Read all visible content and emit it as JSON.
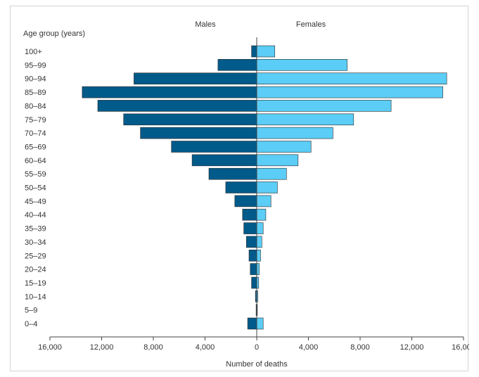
{
  "chart_data": {
    "type": "bar",
    "orientation": "horizontal",
    "subtype": "population-pyramid",
    "title": "",
    "ylabel": "Age group (years)",
    "xlabel": "Number of deaths",
    "xlim": [
      -16000,
      16000
    ],
    "x_ticks": [
      -16000,
      -12000,
      -8000,
      -4000,
      0,
      4000,
      8000,
      12000,
      16000
    ],
    "x_tick_labels": [
      "16,000",
      "12,000",
      "8,000",
      "4,000",
      "0",
      "4,000",
      "8,000",
      "12,000",
      "16,000"
    ],
    "grid": false,
    "legend": "top-center",
    "categories": [
      "100+",
      "95–99",
      "90–94",
      "85–89",
      "80–84",
      "75–79",
      "70–74",
      "65–69",
      "60–64",
      "55–59",
      "50–54",
      "45–49",
      "40–44",
      "35–39",
      "30–34",
      "25–29",
      "20–24",
      "15–19",
      "10–14",
      "5–9",
      "0–4"
    ],
    "series": [
      {
        "name": "Males",
        "side": "left",
        "color": "#005a8a",
        "values": [
          400,
          3000,
          9500,
          13500,
          12300,
          10300,
          9000,
          6600,
          5000,
          3700,
          2400,
          1700,
          1100,
          1000,
          800,
          600,
          500,
          400,
          100,
          50,
          700
        ]
      },
      {
        "name": "Females",
        "side": "right",
        "color": "#5bcdf6",
        "values": [
          1400,
          7000,
          14700,
          14400,
          10400,
          7500,
          5900,
          4200,
          3200,
          2300,
          1600,
          1100,
          700,
          500,
          400,
          300,
          200,
          150,
          80,
          50,
          500
        ]
      }
    ]
  }
}
